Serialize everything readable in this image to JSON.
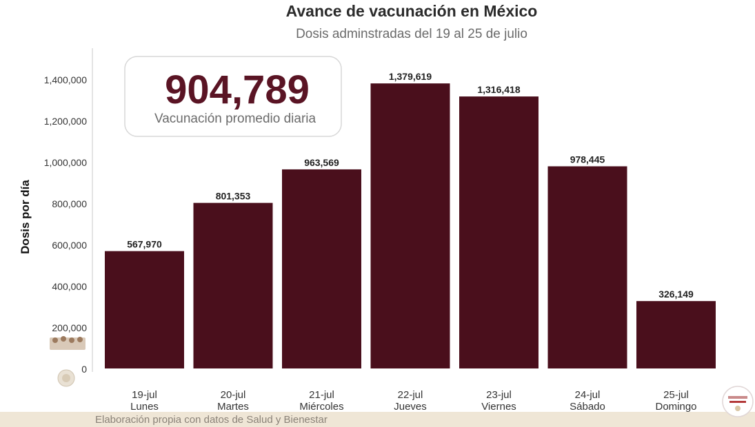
{
  "colors": {
    "bar": "#4a0f1c",
    "kpi": "#5a1424",
    "footer_band": "#efe6d6"
  },
  "kpi": {
    "value": "904,789",
    "label": "Vacunación promedio diaria"
  },
  "source": "Elaboración propia con datos de Salud y Bienestar",
  "chart_data": {
    "type": "bar",
    "title": "Avance de vacunación en México",
    "subtitle": "Dosis adminstradas del 19 al 25 de julio",
    "xlabel": "",
    "ylabel": "Dosis por día",
    "ylim": [
      0,
      1500000
    ],
    "yticks": [
      0,
      200000,
      400000,
      600000,
      800000,
      1000000,
      1200000,
      1400000
    ],
    "ytick_labels": [
      "0",
      "200,000",
      "400,000",
      "600,000",
      "800,000",
      "1,000,000",
      "1,200,000",
      "1,400,000"
    ],
    "categories": [
      "19-jul",
      "20-jul",
      "21-jul",
      "22-jul",
      "23-jul",
      "24-jul",
      "25-jul"
    ],
    "days": [
      "Lunes",
      "Martes",
      "Miércoles",
      "Jueves",
      "Viernes",
      "Sábado",
      "Domingo"
    ],
    "values": [
      567970,
      801353,
      963569,
      1379619,
      1316418,
      978445,
      326149
    ],
    "value_labels": [
      "567,970",
      "801,353",
      "963,569",
      "1,379,619",
      "1,316,418",
      "978,445",
      "326,149"
    ],
    "grid": false,
    "legend": "none"
  }
}
